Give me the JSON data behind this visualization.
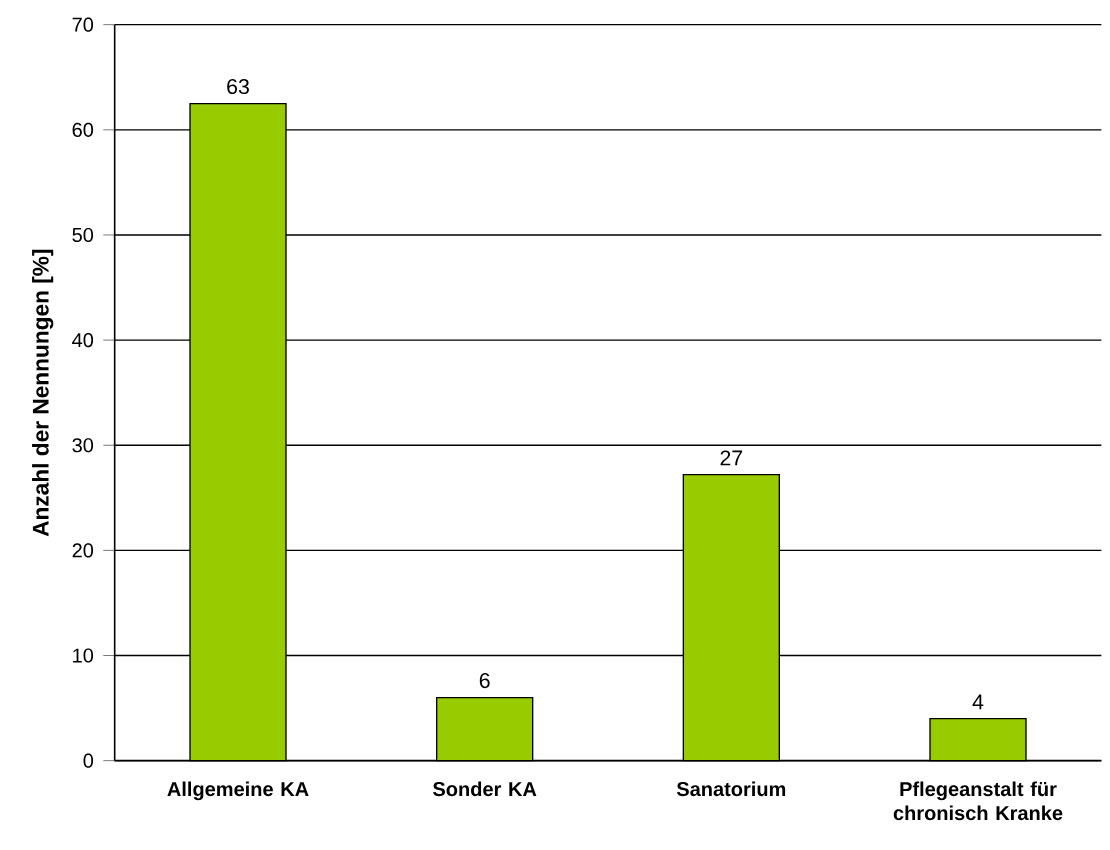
{
  "chart_data": {
    "type": "bar",
    "ylabel": "Anzahl der Nennungen [%]",
    "categories": [
      "Allgemeine KA",
      "Sonder KA",
      "Sanatorium",
      "Pflegeanstalt für chronisch Kranke"
    ],
    "values": [
      62.5,
      6,
      27.2,
      4
    ],
    "value_labels": [
      "63",
      "6",
      "27",
      "4"
    ],
    "color": "#99cc00",
    "ylim": [
      0,
      70
    ],
    "yticks": [
      0,
      10,
      20,
      30,
      40,
      50,
      60,
      70
    ],
    "grid": "y"
  }
}
